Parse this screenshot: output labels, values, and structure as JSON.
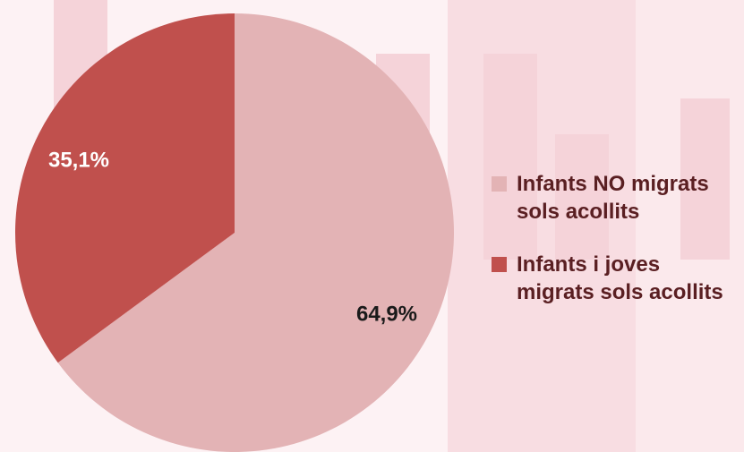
{
  "colors": {
    "background": "#fdf2f4",
    "watermark": "#f7d9de",
    "label_text": "#5a1f22"
  },
  "chart_data": {
    "type": "pie",
    "start_angle_deg": 0,
    "direction": "clockwise",
    "slices": [
      {
        "name": "Infants NO migrats sols acollits",
        "value": 64.9,
        "label": "64,9%",
        "color": "#e3b3b5",
        "label_color": "#1a1a1a"
      },
      {
        "name": "Infants i joves migrats sols acollits",
        "value": 35.1,
        "label": "35,1%",
        "color": "#c0504d",
        "label_color": "#ffffff"
      }
    ],
    "legend": {
      "position": "right",
      "items": [
        {
          "line1": "Infants NO migrats",
          "line2": "sols acollits"
        },
        {
          "line1": "Infants i joves",
          "line2": "migrats sols acollits"
        }
      ]
    }
  }
}
